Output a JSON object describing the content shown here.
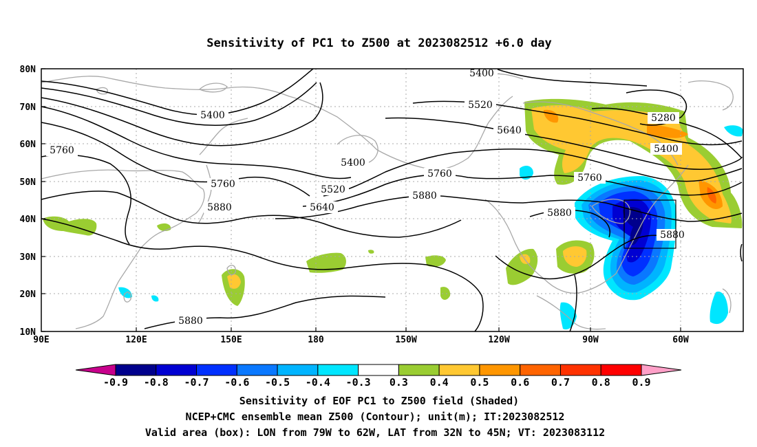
{
  "title": "Sensitivity of PC1 to Z500 at 2023082512 +6.0 day",
  "lat_ticks": [
    "80N",
    "70N",
    "60N",
    "50N",
    "40N",
    "30N",
    "20N",
    "10N"
  ],
  "lon_ticks": [
    "90E",
    "120E",
    "150E",
    "180",
    "150W",
    "120W",
    "90W",
    "60W"
  ],
  "contour_labels": [
    "5400",
    "5520",
    "5640",
    "5280",
    "5400",
    "5760",
    "5400",
    "5400",
    "5760",
    "5880",
    "5520",
    "5640",
    "5760",
    "5880",
    "5880",
    "5760",
    "5880",
    "5880"
  ],
  "colorbar": {
    "labels": [
      "-0.9",
      "-0.8",
      "-0.7",
      "-0.6",
      "-0.5",
      "-0.4",
      "-0.3",
      "0.3",
      "0.4",
      "0.5",
      "0.6",
      "0.7",
      "0.8",
      "0.9"
    ],
    "colors": [
      "#c8008c",
      "#00008c",
      "#0000d2",
      "#0030ff",
      "#0a78ff",
      "#00b4ff",
      "#00e6ff",
      "#ffffff",
      "#9acd32",
      "#ffc832",
      "#ff9600",
      "#ff6400",
      "#ff3200",
      "#ff0000",
      "#ffa0c8"
    ]
  },
  "footer": [
    "Sensitivity of EOF PC1 to Z500 field (Shaded)",
    "NCEP+CMC ensemble mean Z500 (Contour); unit(m); IT:2023082512",
    "Valid area (box): LON from 79W to 62W, LAT from 32N to 45N; VT: 2023083112"
  ],
  "valid_box": {
    "lon_min": -79,
    "lon_max": -62,
    "lat_min": 32,
    "lat_max": 45
  },
  "map_extent": {
    "lon_min": 90,
    "lon_max": 312,
    "lat_min": 10,
    "lat_max": 80
  },
  "colors": {
    "contour": "#000000",
    "coastline": "#a8a8a8",
    "grid": "#a8a8a8"
  }
}
